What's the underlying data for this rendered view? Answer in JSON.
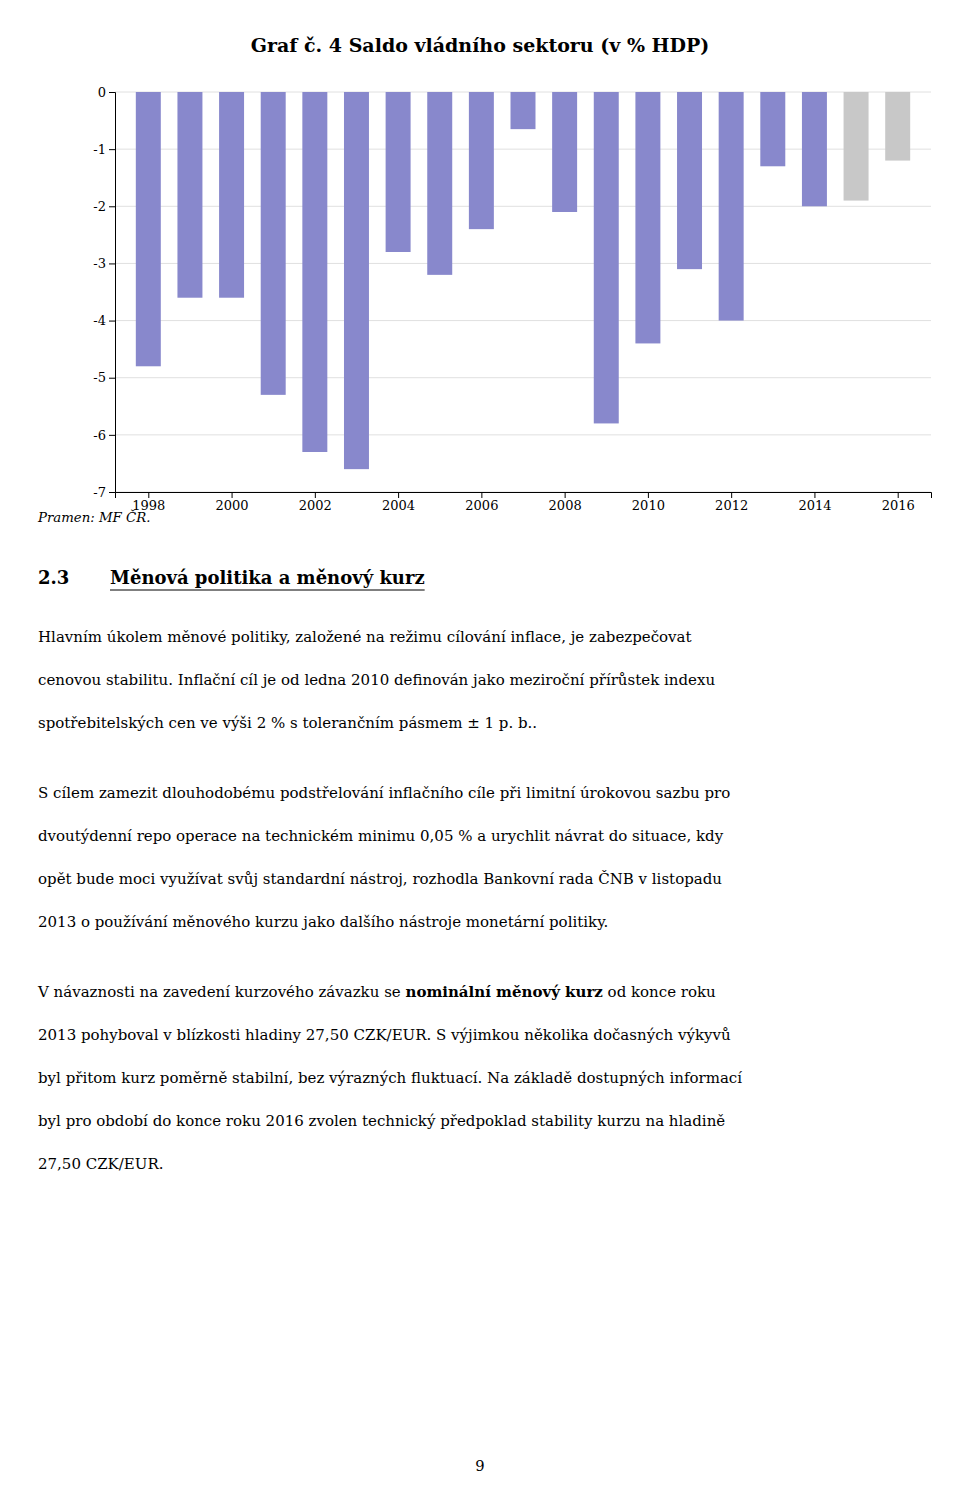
{
  "chart_data": {
    "type": "bar",
    "title": "Graf č. 4 Saldo vládního sektoru (v % HDP)",
    "x": [
      1998,
      1999,
      2000,
      2001,
      2002,
      2003,
      2004,
      2005,
      2006,
      2007,
      2008,
      2009,
      2010,
      2011,
      2012,
      2013,
      2014,
      2015,
      2016
    ],
    "values": [
      -4.8,
      -3.6,
      -3.6,
      -5.3,
      -6.3,
      -6.6,
      -2.8,
      -3.2,
      -2.4,
      -0.65,
      -2.1,
      -5.8,
      -4.4,
      -3.1,
      -4.0,
      -1.3,
      -2.0,
      -1.9,
      -1.2
    ],
    "colors": [
      "#8888cc",
      "#8888cc",
      "#8888cc",
      "#8888cc",
      "#8888cc",
      "#8888cc",
      "#8888cc",
      "#8888cc",
      "#8888cc",
      "#8888cc",
      "#8888cc",
      "#8888cc",
      "#8888cc",
      "#8888cc",
      "#8888cc",
      "#8888cc",
      "#8888cc",
      "#c8c8c8",
      "#c8c8c8"
    ],
    "xlim": [
      1997.2,
      2016.8
    ],
    "xticks": [
      1998,
      2000,
      2002,
      2004,
      2006,
      2008,
      2010,
      2012,
      2014,
      2016
    ],
    "ylim": [
      -7,
      0
    ],
    "yticks": [
      0,
      -1,
      -2,
      -3,
      -4,
      -5,
      -6,
      -7
    ],
    "grid": true
  },
  "source": "Pramen: MF ČR.",
  "section": {
    "number": "2.3",
    "heading": "Měnová politika a měnový kurz"
  },
  "paragraphs": [
    [
      "Hlavním úkolem měnové politiky, založené na režimu cílování inflace, je zabezpečovat",
      "cenovou stabilitu. Inflační cíl je od ledna 2010 definován jako meziroční přírůstek indexu",
      "spotřebitelských cen ve výši 2 % s tolerančním pásmem ± 1 p. b.."
    ],
    [
      "S cílem zamezit dlouhodobému podstřelování inflačního cíle při limitní úrokovou sazbu pro",
      "dvoutýdenní repo operace na technickém minimu 0,05 % a urychlit návrat do situace, kdy",
      "opět bude moci využívat svůj standardní nástroj, rozhodla Bankovní rada ČNB v listopadu",
      "2013 o používání měnového kurzu jako dalšího nástroje monetární politiky."
    ],
    [
      [
        {
          "text": "V návaznosti na zavedení kurzového závazku se ",
          "weight": "normal"
        },
        {
          "text": "nominální měnový kurz",
          "weight": "bold"
        },
        {
          "text": " od konce roku",
          "weight": "normal"
        }
      ],
      "2013 pohyboval v blízkosti hladiny 27,50 CZK/EUR. S výjimkou několika dočasných výkyvů",
      "byl přitom kurz poměrně stabilní, bez výrazných fluktuací. Na základě dostupných informací",
      "byl pro období do konce roku 2016 zvolen technický předpoklad stability kurzu na hladině",
      "27,50 CZK/EUR."
    ]
  ],
  "page_number": "9"
}
